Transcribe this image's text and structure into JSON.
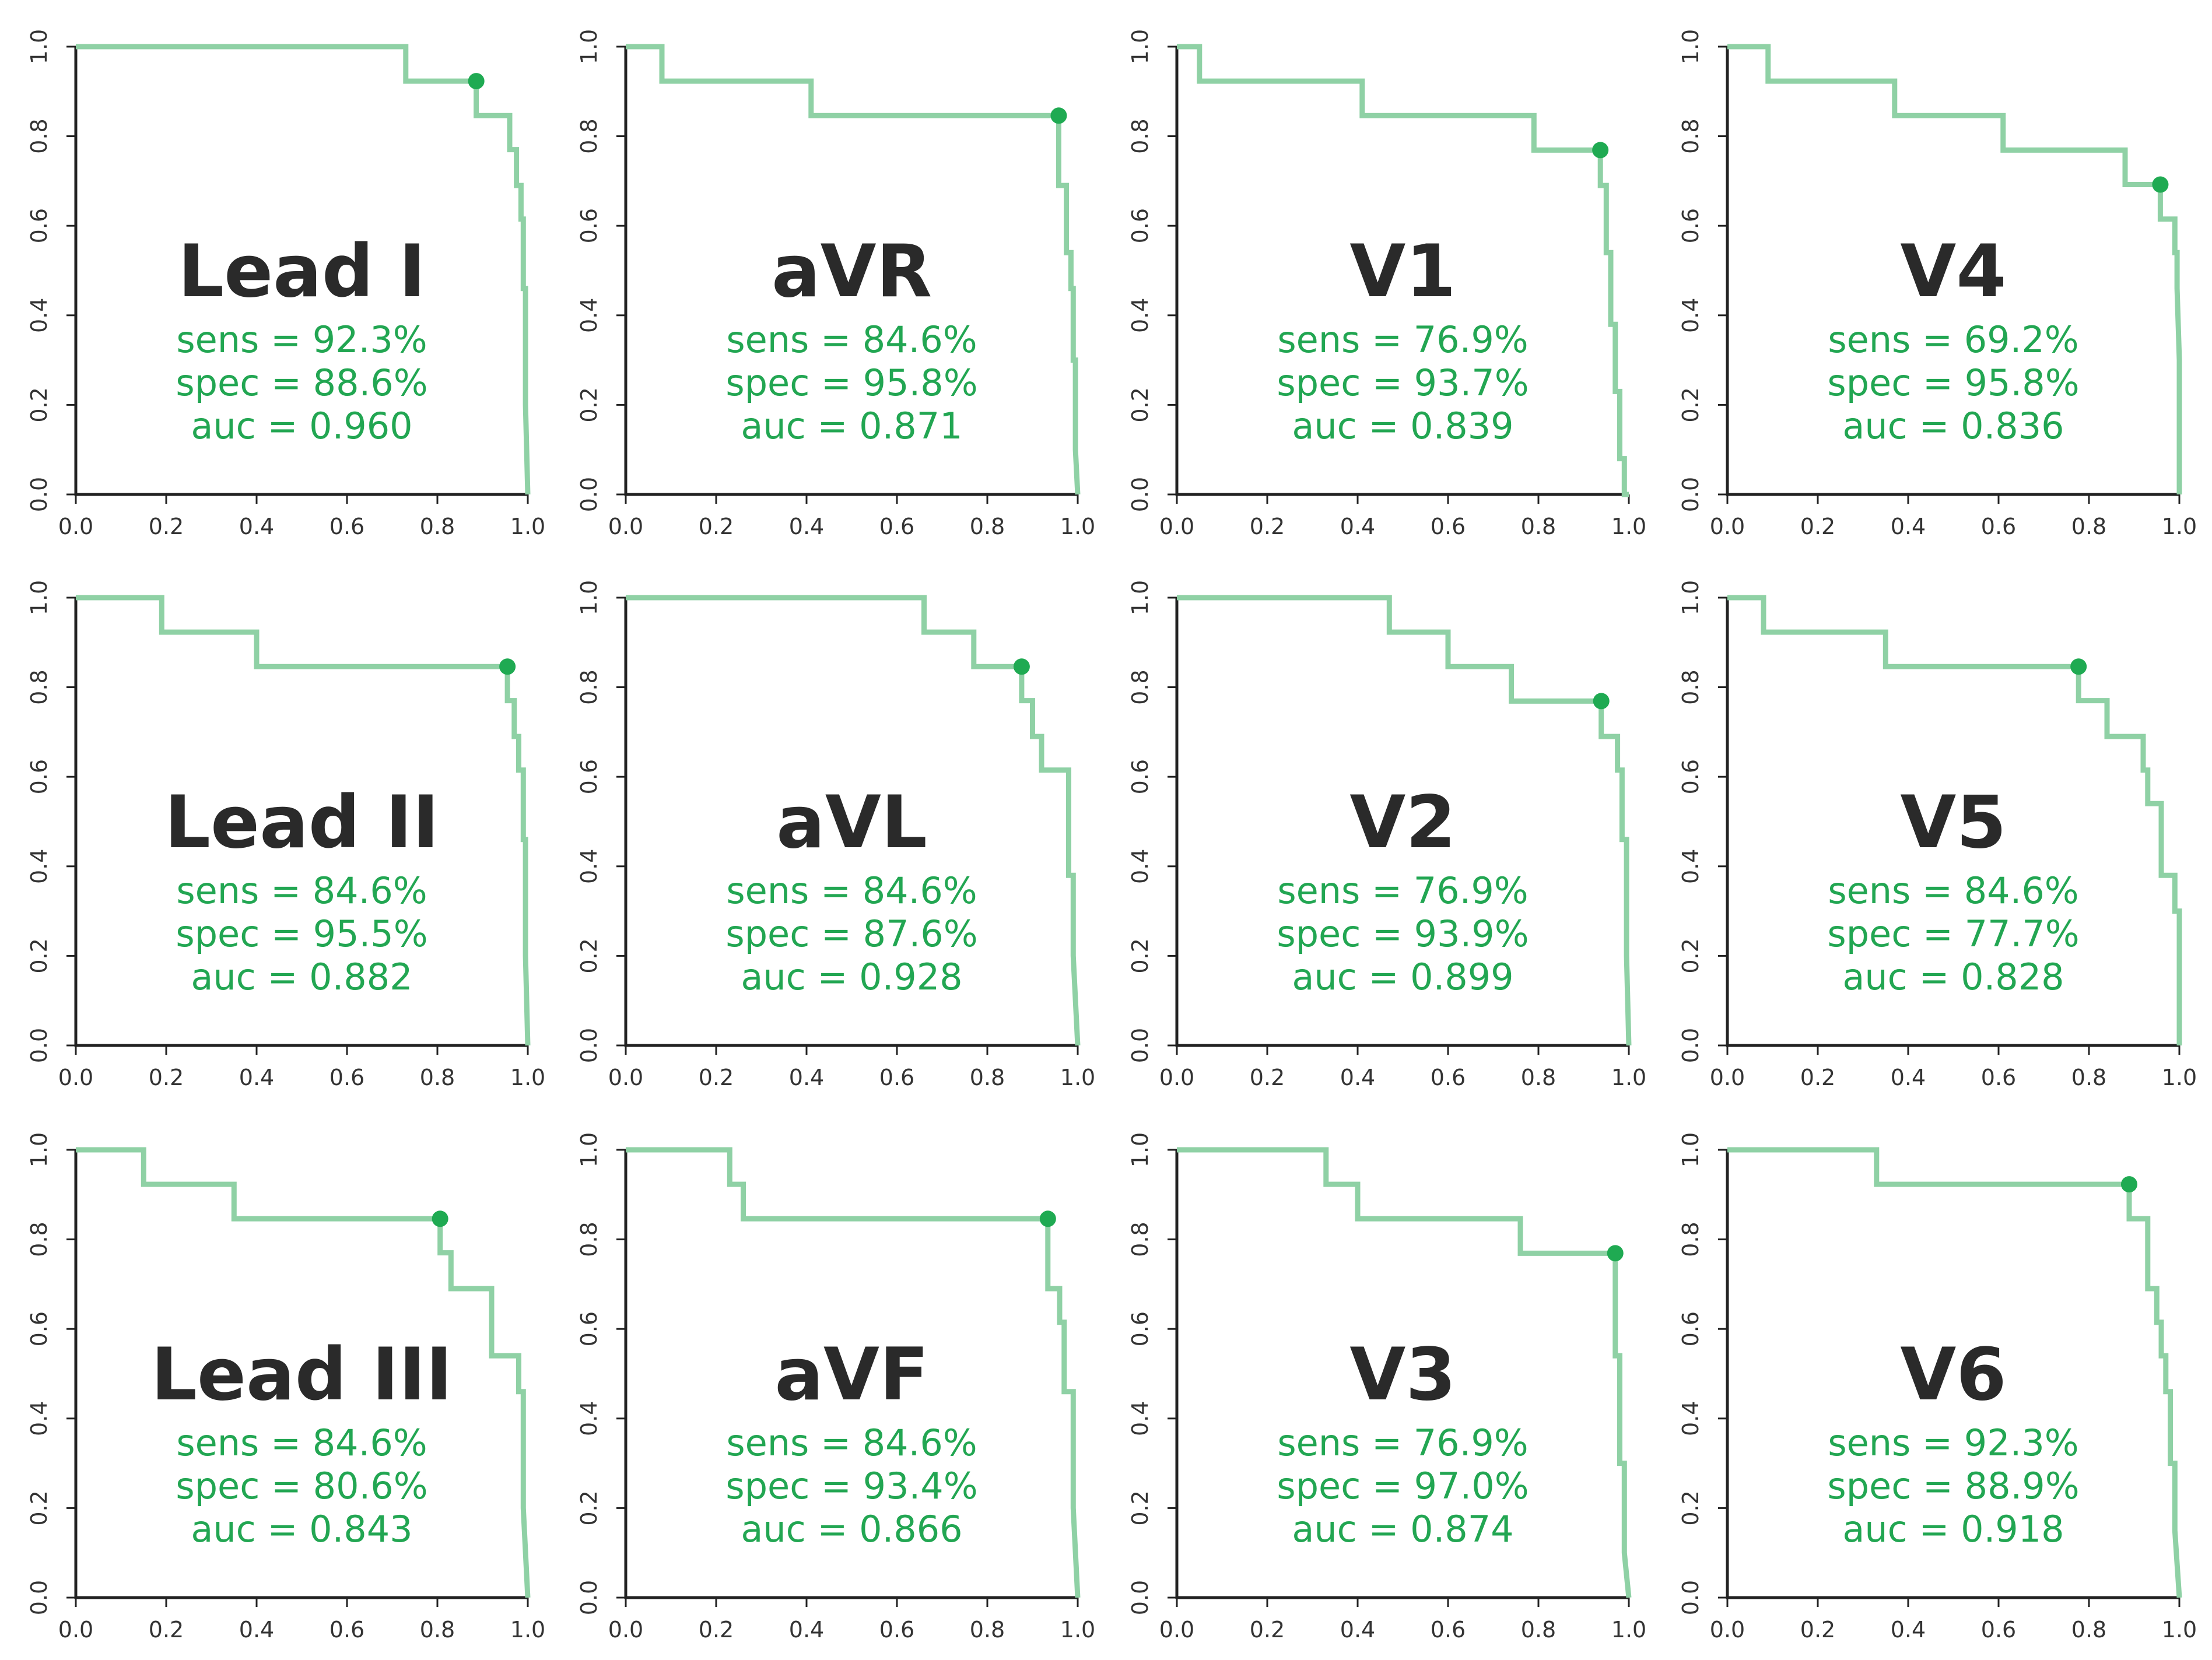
{
  "chart_data": {
    "type": "line",
    "subtype": "roc-step-curves-grid",
    "grid": "none",
    "xlim": [
      0,
      1
    ],
    "ylim": [
      0,
      1
    ],
    "x_ticks": [
      "0.0",
      "0.2",
      "0.4",
      "0.6",
      "0.8",
      "1.0"
    ],
    "y_ticks": [
      "0.0",
      "0.2",
      "0.4",
      "0.6",
      "0.8",
      "1.0"
    ],
    "colors": {
      "curve": "#8fd1a5",
      "point": "#1faa52",
      "stats": "#22a652",
      "title": "#2a2a2a",
      "axis": "#222222"
    },
    "panels": [
      {
        "title": "Lead I",
        "sens": "sens = 92.3%",
        "spec": "spec = 88.6%",
        "auc": "auc = 0.960",
        "point": [
          0.886,
          0.923
        ],
        "curve": [
          [
            0,
            1
          ],
          [
            0.73,
            1
          ],
          [
            0.73,
            0.923
          ],
          [
            0.886,
            0.923
          ],
          [
            0.886,
            0.846
          ],
          [
            0.96,
            0.846
          ],
          [
            0.96,
            0.77
          ],
          [
            0.975,
            0.77
          ],
          [
            0.975,
            0.69
          ],
          [
            0.985,
            0.69
          ],
          [
            0.985,
            0.615
          ],
          [
            0.99,
            0.615
          ],
          [
            0.99,
            0.46
          ],
          [
            0.995,
            0.46
          ],
          [
            0.995,
            0.2
          ],
          [
            1,
            0
          ]
        ]
      },
      {
        "title": "aVR",
        "sens": "sens = 84.6%",
        "spec": "spec = 95.8%",
        "auc": "auc = 0.871",
        "point": [
          0.958,
          0.846
        ],
        "curve": [
          [
            0,
            1
          ],
          [
            0.08,
            1
          ],
          [
            0.08,
            0.923
          ],
          [
            0.41,
            0.923
          ],
          [
            0.41,
            0.846
          ],
          [
            0.958,
            0.846
          ],
          [
            0.958,
            0.69
          ],
          [
            0.975,
            0.69
          ],
          [
            0.975,
            0.54
          ],
          [
            0.985,
            0.54
          ],
          [
            0.985,
            0.46
          ],
          [
            0.99,
            0.46
          ],
          [
            0.99,
            0.3
          ],
          [
            0.995,
            0.3
          ],
          [
            0.995,
            0.1
          ],
          [
            1,
            0
          ]
        ]
      },
      {
        "title": "V1",
        "sens": "sens = 76.9%",
        "spec": "spec = 93.7%",
        "auc": "auc = 0.839",
        "point": [
          0.937,
          0.769
        ],
        "curve": [
          [
            0,
            1
          ],
          [
            0.05,
            1
          ],
          [
            0.05,
            0.923
          ],
          [
            0.41,
            0.923
          ],
          [
            0.41,
            0.846
          ],
          [
            0.79,
            0.846
          ],
          [
            0.79,
            0.769
          ],
          [
            0.937,
            0.769
          ],
          [
            0.937,
            0.69
          ],
          [
            0.95,
            0.69
          ],
          [
            0.95,
            0.54
          ],
          [
            0.96,
            0.54
          ],
          [
            0.96,
            0.38
          ],
          [
            0.97,
            0.38
          ],
          [
            0.97,
            0.23
          ],
          [
            0.98,
            0.23
          ],
          [
            0.98,
            0.08
          ],
          [
            0.99,
            0.08
          ],
          [
            0.99,
            0
          ],
          [
            1,
            0
          ]
        ]
      },
      {
        "title": "V4",
        "sens": "sens = 69.2%",
        "spec": "spec = 95.8%",
        "auc": "auc = 0.836",
        "point": [
          0.958,
          0.692
        ],
        "curve": [
          [
            0,
            1
          ],
          [
            0.09,
            1
          ],
          [
            0.09,
            0.923
          ],
          [
            0.37,
            0.923
          ],
          [
            0.37,
            0.846
          ],
          [
            0.61,
            0.846
          ],
          [
            0.61,
            0.769
          ],
          [
            0.88,
            0.769
          ],
          [
            0.88,
            0.692
          ],
          [
            0.958,
            0.692
          ],
          [
            0.958,
            0.615
          ],
          [
            0.99,
            0.615
          ],
          [
            0.99,
            0.54
          ],
          [
            0.995,
            0.54
          ],
          [
            0.995,
            0.46
          ],
          [
            1,
            0.3
          ],
          [
            1,
            0
          ]
        ]
      },
      {
        "title": "Lead II",
        "sens": "sens = 84.6%",
        "spec": "spec = 95.5%",
        "auc": "auc = 0.882",
        "point": [
          0.955,
          0.846
        ],
        "curve": [
          [
            0,
            1
          ],
          [
            0.19,
            1
          ],
          [
            0.19,
            0.923
          ],
          [
            0.4,
            0.923
          ],
          [
            0.4,
            0.846
          ],
          [
            0.955,
            0.846
          ],
          [
            0.955,
            0.77
          ],
          [
            0.97,
            0.77
          ],
          [
            0.97,
            0.69
          ],
          [
            0.98,
            0.69
          ],
          [
            0.98,
            0.615
          ],
          [
            0.99,
            0.615
          ],
          [
            0.99,
            0.46
          ],
          [
            0.995,
            0.46
          ],
          [
            0.995,
            0.2
          ],
          [
            1,
            0
          ]
        ]
      },
      {
        "title": "aVL",
        "sens": "sens = 84.6%",
        "spec": "spec = 87.6%",
        "auc": "auc = 0.928",
        "point": [
          0.876,
          0.846
        ],
        "curve": [
          [
            0,
            1
          ],
          [
            0.66,
            1
          ],
          [
            0.66,
            0.923
          ],
          [
            0.77,
            0.923
          ],
          [
            0.77,
            0.846
          ],
          [
            0.876,
            0.846
          ],
          [
            0.876,
            0.77
          ],
          [
            0.9,
            0.77
          ],
          [
            0.9,
            0.69
          ],
          [
            0.92,
            0.69
          ],
          [
            0.92,
            0.615
          ],
          [
            0.98,
            0.615
          ],
          [
            0.98,
            0.38
          ],
          [
            0.99,
            0.38
          ],
          [
            0.99,
            0.2
          ],
          [
            1,
            0
          ]
        ]
      },
      {
        "title": "V2",
        "sens": "sens = 76.9%",
        "spec": "spec = 93.9%",
        "auc": "auc = 0.899",
        "point": [
          0.939,
          0.769
        ],
        "curve": [
          [
            0,
            1
          ],
          [
            0.47,
            1
          ],
          [
            0.47,
            0.923
          ],
          [
            0.6,
            0.923
          ],
          [
            0.6,
            0.846
          ],
          [
            0.74,
            0.846
          ],
          [
            0.74,
            0.769
          ],
          [
            0.939,
            0.769
          ],
          [
            0.939,
            0.69
          ],
          [
            0.975,
            0.69
          ],
          [
            0.975,
            0.615
          ],
          [
            0.985,
            0.615
          ],
          [
            0.985,
            0.46
          ],
          [
            0.995,
            0.46
          ],
          [
            0.995,
            0.2
          ],
          [
            1,
            0
          ]
        ]
      },
      {
        "title": "V5",
        "sens": "sens = 84.6%",
        "spec": "spec = 77.7%",
        "auc": "auc = 0.828",
        "point": [
          0.777,
          0.846
        ],
        "curve": [
          [
            0,
            1
          ],
          [
            0.08,
            1
          ],
          [
            0.08,
            0.923
          ],
          [
            0.35,
            0.923
          ],
          [
            0.35,
            0.846
          ],
          [
            0.777,
            0.846
          ],
          [
            0.777,
            0.77
          ],
          [
            0.84,
            0.77
          ],
          [
            0.84,
            0.69
          ],
          [
            0.92,
            0.69
          ],
          [
            0.92,
            0.615
          ],
          [
            0.93,
            0.615
          ],
          [
            0.93,
            0.54
          ],
          [
            0.96,
            0.54
          ],
          [
            0.96,
            0.38
          ],
          [
            0.99,
            0.38
          ],
          [
            0.99,
            0.3
          ],
          [
            1,
            0.3
          ],
          [
            1,
            0
          ]
        ]
      },
      {
        "title": "Lead III",
        "sens": "sens = 84.6%",
        "spec": "spec = 80.6%",
        "auc": "auc = 0.843",
        "point": [
          0.806,
          0.846
        ],
        "curve": [
          [
            0,
            1
          ],
          [
            0.15,
            1
          ],
          [
            0.15,
            0.923
          ],
          [
            0.35,
            0.923
          ],
          [
            0.35,
            0.846
          ],
          [
            0.806,
            0.846
          ],
          [
            0.806,
            0.77
          ],
          [
            0.83,
            0.77
          ],
          [
            0.83,
            0.69
          ],
          [
            0.92,
            0.69
          ],
          [
            0.92,
            0.54
          ],
          [
            0.98,
            0.54
          ],
          [
            0.98,
            0.46
          ],
          [
            0.99,
            0.46
          ],
          [
            0.99,
            0.2
          ],
          [
            1,
            0
          ]
        ]
      },
      {
        "title": "aVF",
        "sens": "sens = 84.6%",
        "spec": "spec = 93.4%",
        "auc": "auc = 0.866",
        "point": [
          0.934,
          0.846
        ],
        "curve": [
          [
            0,
            1
          ],
          [
            0.23,
            1
          ],
          [
            0.23,
            0.923
          ],
          [
            0.26,
            0.923
          ],
          [
            0.26,
            0.846
          ],
          [
            0.934,
            0.846
          ],
          [
            0.934,
            0.69
          ],
          [
            0.96,
            0.69
          ],
          [
            0.96,
            0.615
          ],
          [
            0.97,
            0.615
          ],
          [
            0.97,
            0.46
          ],
          [
            0.99,
            0.46
          ],
          [
            0.99,
            0.2
          ],
          [
            1,
            0
          ]
        ]
      },
      {
        "title": "V3",
        "sens": "sens = 76.9%",
        "spec": "spec = 97.0%",
        "auc": "auc = 0.874",
        "point": [
          0.97,
          0.769
        ],
        "curve": [
          [
            0,
            1
          ],
          [
            0.33,
            1
          ],
          [
            0.33,
            0.923
          ],
          [
            0.4,
            0.923
          ],
          [
            0.4,
            0.846
          ],
          [
            0.76,
            0.846
          ],
          [
            0.76,
            0.769
          ],
          [
            0.97,
            0.769
          ],
          [
            0.97,
            0.54
          ],
          [
            0.98,
            0.54
          ],
          [
            0.98,
            0.3
          ],
          [
            0.99,
            0.3
          ],
          [
            0.99,
            0.1
          ],
          [
            1,
            0
          ]
        ]
      },
      {
        "title": "V6",
        "sens": "sens = 92.3%",
        "spec": "spec = 88.9%",
        "auc": "auc = 0.918",
        "point": [
          0.889,
          0.923
        ],
        "curve": [
          [
            0,
            1
          ],
          [
            0.33,
            1
          ],
          [
            0.33,
            0.923
          ],
          [
            0.889,
            0.923
          ],
          [
            0.889,
            0.846
          ],
          [
            0.93,
            0.846
          ],
          [
            0.93,
            0.69
          ],
          [
            0.95,
            0.69
          ],
          [
            0.95,
            0.615
          ],
          [
            0.96,
            0.615
          ],
          [
            0.96,
            0.54
          ],
          [
            0.97,
            0.54
          ],
          [
            0.97,
            0.46
          ],
          [
            0.98,
            0.46
          ],
          [
            0.98,
            0.3
          ],
          [
            0.99,
            0.3
          ],
          [
            0.99,
            0.15
          ],
          [
            1,
            0
          ]
        ]
      }
    ]
  }
}
